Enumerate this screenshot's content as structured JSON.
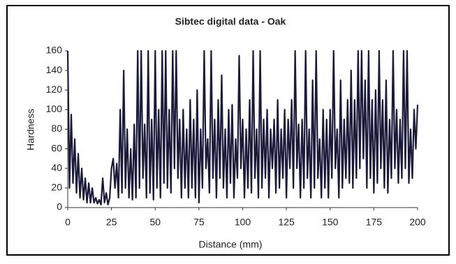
{
  "chart_data": {
    "type": "line",
    "title": "Sibtec digital data - Oak",
    "xlabel": "Distance (mm)",
    "ylabel": "Hardness",
    "x": [
      0,
      1,
      2,
      3,
      4,
      5,
      6,
      7,
      8,
      9,
      10,
      11,
      12,
      13,
      14,
      15,
      16,
      17,
      18,
      19,
      20,
      21,
      22,
      23,
      24,
      25,
      26,
      27,
      28,
      29,
      30,
      31,
      32,
      33,
      34,
      35,
      36,
      37,
      38,
      39,
      40,
      41,
      42,
      43,
      44,
      45,
      46,
      47,
      48,
      49,
      50,
      51,
      52,
      53,
      54,
      55,
      56,
      57,
      58,
      59,
      60,
      61,
      62,
      63,
      64,
      65,
      66,
      67,
      68,
      69,
      70,
      71,
      72,
      73,
      74,
      75,
      76,
      77,
      78,
      79,
      80,
      81,
      82,
      83,
      84,
      85,
      86,
      87,
      88,
      89,
      90,
      91,
      92,
      93,
      94,
      95,
      96,
      97,
      98,
      99,
      100,
      101,
      102,
      103,
      104,
      105,
      106,
      107,
      108,
      109,
      110,
      111,
      112,
      113,
      114,
      115,
      116,
      117,
      118,
      119,
      120,
      121,
      122,
      123,
      124,
      125,
      126,
      127,
      128,
      129,
      130,
      131,
      132,
      133,
      134,
      135,
      136,
      137,
      138,
      139,
      140,
      141,
      142,
      143,
      144,
      145,
      146,
      147,
      148,
      149,
      150,
      151,
      152,
      153,
      154,
      155,
      156,
      157,
      158,
      159,
      160,
      161,
      162,
      163,
      164,
      165,
      166,
      167,
      168,
      169,
      170,
      171,
      172,
      173,
      174,
      175,
      176,
      177,
      178,
      179,
      180,
      181,
      182,
      183,
      184,
      185,
      186,
      187,
      188,
      189,
      190,
      191,
      192,
      193,
      194,
      195,
      196,
      197,
      198,
      199,
      200
    ],
    "values": [
      160,
      20,
      95,
      25,
      70,
      15,
      55,
      10,
      40,
      8,
      30,
      5,
      25,
      5,
      20,
      5,
      10,
      4,
      8,
      3,
      30,
      5,
      15,
      3,
      10,
      40,
      50,
      20,
      45,
      10,
      100,
      15,
      140,
      20,
      80,
      10,
      60,
      8,
      85,
      10,
      160,
      20,
      160,
      30,
      85,
      10,
      160,
      15,
      90,
      8,
      160,
      20,
      100,
      10,
      160,
      25,
      160,
      20,
      100,
      15,
      160,
      40,
      160,
      30,
      90,
      10,
      100,
      20,
      80,
      10,
      110,
      20,
      90,
      10,
      120,
      5,
      80,
      20,
      160,
      40,
      70,
      15,
      160,
      30,
      90,
      10,
      110,
      30,
      135,
      20,
      80,
      10,
      100,
      25,
      105,
      10,
      70,
      30,
      155,
      40,
      90,
      10,
      80,
      20,
      110,
      15,
      160,
      30,
      80,
      10,
      160,
      20,
      90,
      30,
      100,
      10,
      80,
      40,
      90,
      15,
      110,
      20,
      80,
      30,
      100,
      10,
      90,
      40,
      110,
      20,
      160,
      40,
      85,
      10,
      90,
      20,
      160,
      30,
      80,
      10,
      130,
      20,
      160,
      30,
      70,
      10,
      100,
      20,
      90,
      10,
      100,
      30,
      160,
      40,
      80,
      10,
      130,
      20,
      90,
      30,
      110,
      25,
      140,
      20,
      110,
      30,
      160,
      40,
      160,
      50,
      130,
      20,
      160,
      30,
      110,
      15,
      120,
      25,
      160,
      40,
      110,
      20,
      130,
      15,
      90,
      30,
      160,
      40,
      100,
      25,
      90,
      30,
      160,
      40,
      160,
      25,
      80,
      30,
      100,
      60,
      105
    ],
    "color": "#1a1a3a",
    "xlim": [
      0,
      200
    ],
    "xticks": [
      0,
      25,
      50,
      75,
      100,
      125,
      150,
      175,
      200
    ],
    "ylim": [
      0,
      160
    ],
    "yticks": [
      0,
      20,
      40,
      60,
      80,
      100,
      120,
      140,
      160
    ]
  }
}
